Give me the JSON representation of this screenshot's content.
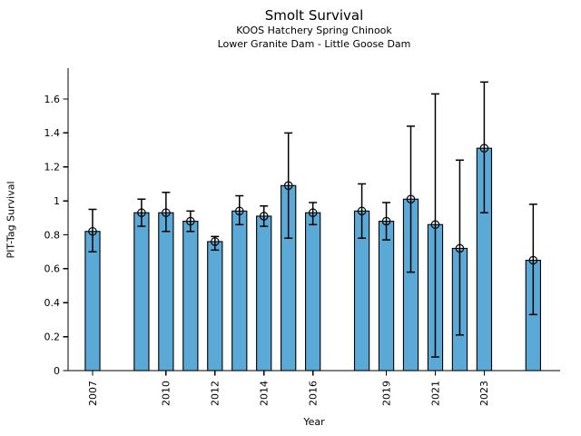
{
  "chart_data": {
    "type": "bar",
    "title": "Smolt Survival",
    "subtitle1": "KOOS Hatchery Spring Chinook",
    "subtitle2": "Lower Granite Dam - Little Goose Dam",
    "xlabel": "Year",
    "ylabel": "PIT-Tag Survival",
    "categories": [
      2007,
      2009,
      2010,
      2011,
      2012,
      2013,
      2014,
      2015,
      2016,
      2018,
      2019,
      2020,
      2021,
      2022,
      2023,
      2025
    ],
    "values": [
      0.82,
      0.93,
      0.93,
      0.88,
      0.76,
      0.94,
      0.91,
      1.09,
      0.93,
      0.94,
      0.88,
      1.01,
      0.86,
      0.72,
      1.31,
      0.65
    ],
    "error_low": [
      0.7,
      0.85,
      0.82,
      0.82,
      0.71,
      0.86,
      0.85,
      0.78,
      0.86,
      0.78,
      0.77,
      0.58,
      0.08,
      0.21,
      0.93,
      0.33
    ],
    "error_high": [
      0.95,
      1.01,
      1.05,
      0.94,
      0.79,
      1.03,
      0.97,
      1.4,
      0.99,
      1.1,
      0.99,
      1.44,
      1.63,
      1.24,
      1.7,
      0.98
    ],
    "xticks": [
      2007,
      2010,
      2012,
      2014,
      2016,
      2019,
      2021,
      2023
    ],
    "yticks": [
      0,
      0.2,
      0.4,
      0.6,
      0.8,
      1,
      1.2,
      1.4,
      1.6
    ],
    "ytick_labels": [
      "0",
      "0.2",
      "0.4",
      "0.6",
      "0.8",
      "1",
      "1.2",
      "1.4",
      "1.6"
    ],
    "xlim": [
      2006.0,
      2026.1
    ],
    "ylim": [
      0,
      1.782
    ],
    "bar_width_years": 0.6,
    "bar_color": "#5AA9D6",
    "bar_edge_color": "#000000",
    "error_color": "#000000",
    "marker": "open-circle",
    "grid": false,
    "legend": null
  }
}
